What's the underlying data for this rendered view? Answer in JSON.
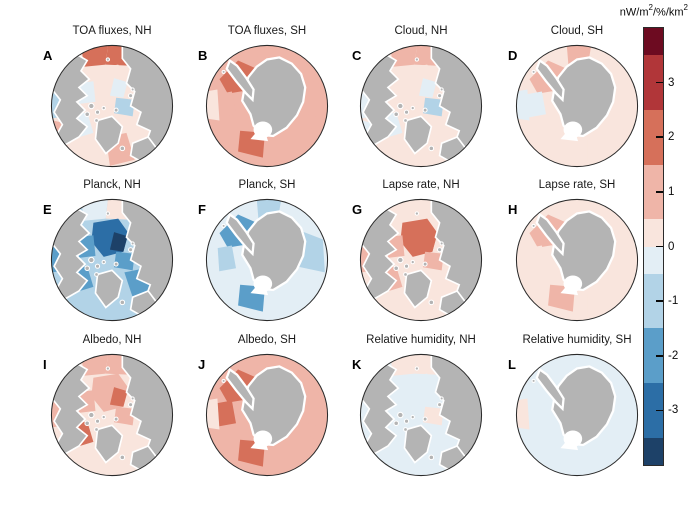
{
  "styles": {
    "background": "#ffffff",
    "land_color": "#b4b4b4",
    "coast_color": "#ffffff",
    "circle_outline": "#2a2a2a",
    "text_color": "#1a1a1a"
  },
  "chart_data": {
    "type": "heatmap",
    "figure_kind": "polar-stereographic map panels (radiative feedback sensitivity maps)",
    "grid": {
      "rows": 3,
      "cols": 4
    },
    "colorbar": {
      "label": "nW/m²/%/km²",
      "label_parts": [
        {
          "t": "nW/m"
        },
        {
          "t": "2",
          "sup": true
        },
        {
          "t": "/%/km"
        },
        {
          "t": "2",
          "sup": true
        }
      ],
      "ticks": [
        "3",
        "2",
        "1",
        "0",
        "-1",
        "-2",
        "-3"
      ],
      "tick_values": [
        3,
        2,
        1,
        0,
        -1,
        -2,
        -3
      ],
      "range": [
        -4,
        4
      ],
      "orientation": "vertical",
      "segments": [
        {
          "from": 3.5,
          "to": 4,
          "color": "#6d0b21"
        },
        {
          "from": 2.5,
          "to": 3.5,
          "color": "#b13639"
        },
        {
          "from": 1.5,
          "to": 2.5,
          "color": "#d6705a"
        },
        {
          "from": 0.5,
          "to": 1.5,
          "color": "#efb5a8"
        },
        {
          "from": 0,
          "to": 0.5,
          "color": "#f9e5dd"
        },
        {
          "from": -0.5,
          "to": 0,
          "color": "#e3eef5"
        },
        {
          "from": -1.5,
          "to": -0.5,
          "color": "#b2d3e7"
        },
        {
          "from": -2.5,
          "to": -1.5,
          "color": "#5b9ec9"
        },
        {
          "from": -3.5,
          "to": -2.5,
          "color": "#2c6ea6"
        },
        {
          "from": -4,
          "to": -3.5,
          "color": "#1d4168"
        }
      ]
    },
    "panels": [
      {
        "letter": "A",
        "title": "TOA fluxes, NH",
        "projection": "NH",
        "base_value": 0.25,
        "region_values": {
          "top_edge_w": 2,
          "top_edge_e": 2,
          "central_cap": 0.25,
          "central_dark": -0.5,
          "kara_east": -1,
          "beaufort_west": -0.5,
          "left_mid": -1,
          "baffin_hudson": -0.5,
          "atlantic_s": 1,
          "norwegian_se": 0.25,
          "labrador_sw": 1
        }
      },
      {
        "letter": "B",
        "title": "TOA fluxes, SH",
        "projection": "SH",
        "base_value": 1,
        "region_values": {
          "top_wedge": 1,
          "weddell_nw": 2,
          "peninsula_w": 1,
          "ross_s": 2,
          "east_e": 1,
          "left_edge": 0.25,
          "se_quad": 1
        }
      },
      {
        "letter": "C",
        "title": "Cloud, NH",
        "projection": "NH",
        "base_value": 0.25,
        "region_values": {
          "top_edge_w": 1,
          "top_edge_e": 1,
          "central_cap": 0.25,
          "central_dark": -0.5,
          "kara_east": -1,
          "beaufort_west": 0.25,
          "left_mid": -0.5,
          "baffin_hudson": -0.5,
          "atlantic_s": 0.25,
          "norwegian_se": 0.25,
          "labrador_sw": -0.5
        }
      },
      {
        "letter": "D",
        "title": "Cloud, SH",
        "projection": "SH",
        "base_value": 0.25,
        "region_values": {
          "top_wedge": 1,
          "weddell_nw": 1,
          "peninsula_w": -0.25,
          "ross_s": 0.25,
          "east_e": 0.25,
          "left_edge": -0.25,
          "se_quad": 0.25
        }
      },
      {
        "letter": "E",
        "title": "Planck, NH",
        "projection": "NH",
        "base_value": -1,
        "region_values": {
          "top_edge_w": -0.5,
          "top_edge_e": 0.25,
          "central_cap": -3,
          "central_dark": -3.7,
          "kara_east": -2,
          "beaufort_west": -2,
          "left_mid": -2,
          "baffin_hudson": -2,
          "atlantic_s": -1,
          "norwegian_se": -2,
          "labrador_sw": -1
        }
      },
      {
        "letter": "F",
        "title": "Planck, SH",
        "projection": "SH",
        "base_value": -0.5,
        "region_values": {
          "top_wedge": -1,
          "weddell_nw": -2,
          "peninsula_w": -1,
          "ross_s": -2,
          "east_e": -1,
          "left_edge": -0.25,
          "se_quad": -0.5
        }
      },
      {
        "letter": "G",
        "title": "Lapse rate, NH",
        "projection": "NH",
        "base_value": 0.25,
        "region_values": {
          "top_edge_w": 0.25,
          "top_edge_e": 0.25,
          "central_cap": 2,
          "central_dark": 2,
          "kara_east": 1,
          "beaufort_west": 1,
          "left_mid": 1,
          "baffin_hudson": 1,
          "atlantic_s": 0.25,
          "norwegian_se": 0.25,
          "labrador_sw": 0.25
        }
      },
      {
        "letter": "H",
        "title": "Lapse rate, SH",
        "projection": "SH",
        "base_value": 0.25,
        "region_values": {
          "top_wedge": 0.25,
          "weddell_nw": 1,
          "peninsula_w": 0.25,
          "ross_s": 1,
          "east_e": 0.25,
          "left_edge": 0.25,
          "se_quad": 0.25
        }
      },
      {
        "letter": "I",
        "title": "Albedo, NH",
        "projection": "NH",
        "base_value": 0.25,
        "region_values": {
          "top_edge_w": 1,
          "top_edge_e": 1,
          "central_cap": 1,
          "central_dark": 2,
          "kara_east": 1,
          "beaufort_west": 1,
          "left_mid": 1,
          "baffin_hudson": 2,
          "atlantic_s": 0.25,
          "norwegian_se": 0.25,
          "labrador_sw": 0.25
        }
      },
      {
        "letter": "J",
        "title": "Albedo, SH",
        "projection": "SH",
        "base_value": 1,
        "region_values": {
          "top_wedge": 1,
          "weddell_nw": 2,
          "peninsula_w": 2,
          "ross_s": 2,
          "east_e": 1,
          "left_edge": 0.25,
          "se_quad": 1
        }
      },
      {
        "letter": "K",
        "title": "Relative humidity, NH",
        "projection": "NH",
        "base_value": -0.25,
        "region_values": {
          "top_edge_w": 0.25,
          "top_edge_e": 0.25,
          "central_cap": -0.25,
          "central_dark": -0.25,
          "kara_east": 0.25,
          "beaufort_west": -0.25,
          "left_mid": -0.25,
          "baffin_hudson": -0.25,
          "atlantic_s": -0.25,
          "norwegian_se": -0.25,
          "labrador_sw": -0.25
        }
      },
      {
        "letter": "L",
        "title": "Relative humidity, SH",
        "projection": "SH",
        "base_value": -0.25,
        "region_values": {
          "top_wedge": -0.25,
          "weddell_nw": -0.25,
          "peninsula_w": -0.25,
          "ross_s": -0.25,
          "east_e": -0.25,
          "left_edge": 0.25,
          "se_quad": -0.25
        }
      }
    ]
  }
}
